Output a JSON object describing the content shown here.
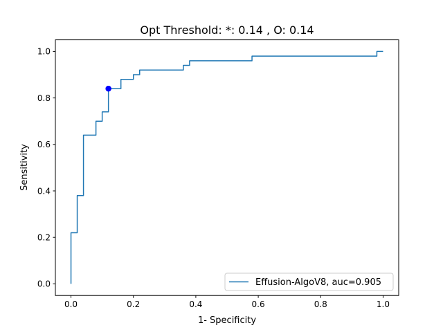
{
  "chart_data": {
    "type": "line",
    "title": "Opt Threshold: *: 0.14 , O: 0.14",
    "xlabel": "1- Specificity",
    "ylabel": "Sensitivity",
    "xlim": [
      -0.05,
      1.05
    ],
    "ylim": [
      -0.05,
      1.05
    ],
    "xticks": [
      0.0,
      0.2,
      0.4,
      0.6,
      0.8,
      1.0
    ],
    "xtick_labels": [
      "0.0",
      "0.2",
      "0.4",
      "0.6",
      "0.8",
      "1.0"
    ],
    "yticks": [
      0.0,
      0.2,
      0.4,
      0.6,
      0.8,
      1.0
    ],
    "ytick_labels": [
      "0.0",
      "0.2",
      "0.4",
      "0.6",
      "0.8",
      "1.0"
    ],
    "grid": false,
    "legend_position": "lower-right",
    "series": [
      {
        "name": "Effusion-AlgoV8, auc=0.905",
        "color": "#1f77b4",
        "x": [
          0.0,
          0.0,
          0.0,
          0.02,
          0.02,
          0.04,
          0.04,
          0.08,
          0.08,
          0.1,
          0.1,
          0.12,
          0.12,
          0.16,
          0.16,
          0.2,
          0.2,
          0.22,
          0.22,
          0.36,
          0.36,
          0.38,
          0.38,
          0.58,
          0.58,
          0.98,
          0.98,
          1.0
        ],
        "y": [
          0.0,
          0.22,
          0.22,
          0.22,
          0.38,
          0.38,
          0.64,
          0.64,
          0.7,
          0.7,
          0.74,
          0.74,
          0.84,
          0.84,
          0.88,
          0.88,
          0.9,
          0.9,
          0.92,
          0.92,
          0.94,
          0.94,
          0.96,
          0.96,
          0.98,
          0.98,
          1.0,
          1.0
        ]
      }
    ],
    "markers": [
      {
        "label": "*",
        "x": 0.12,
        "y": 0.84,
        "color": "#0000ff"
      },
      {
        "label": "O",
        "x": 0.12,
        "y": 0.84,
        "color": "#0000ff"
      }
    ]
  }
}
